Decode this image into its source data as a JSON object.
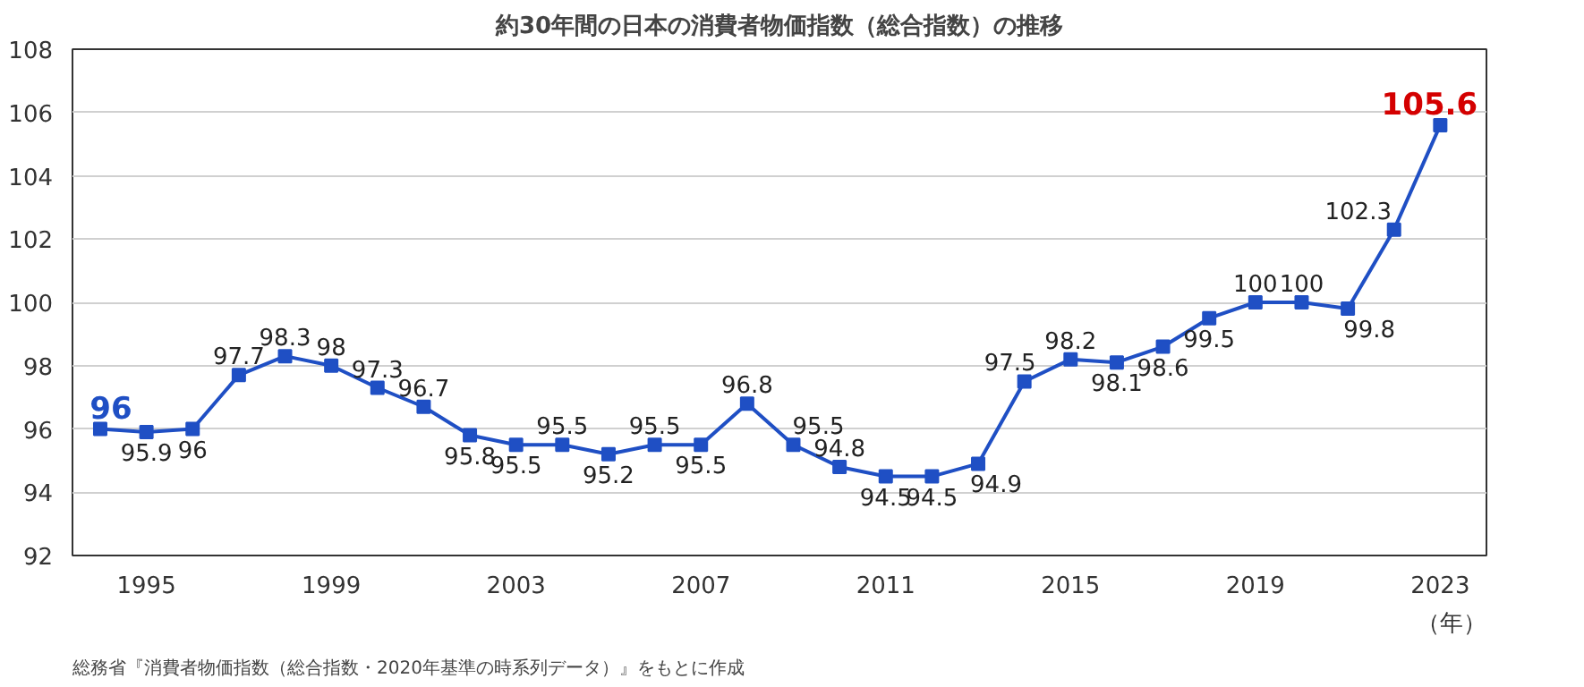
{
  "chart_data": {
    "type": "line",
    "title": "約30年間の日本の消費者物価指数（総合指数）の推移",
    "x": [
      1994,
      1995,
      1996,
      1997,
      1998,
      1999,
      2000,
      2001,
      2002,
      2003,
      2004,
      2005,
      2006,
      2007,
      2008,
      2009,
      2010,
      2011,
      2012,
      2013,
      2014,
      2015,
      2016,
      2017,
      2018,
      2019,
      2020,
      2021,
      2022,
      2023
    ],
    "series": [
      {
        "color": "#1f4fc4",
        "values": [
          96,
          95.9,
          96,
          97.7,
          98.3,
          98,
          97.3,
          96.7,
          95.8,
          95.5,
          95.5,
          95.2,
          95.5,
          95.5,
          96.8,
          95.5,
          94.8,
          94.5,
          94.5,
          94.9,
          97.5,
          98.2,
          98.1,
          98.6,
          99.5,
          100,
          100,
          99.8,
          102.3,
          105.6
        ]
      }
    ],
    "xlabel": "（年）",
    "xlim": [
      1993.4,
      2024
    ],
    "xticks": [
      1995,
      1999,
      2003,
      2007,
      2011,
      2015,
      2019,
      2023
    ],
    "ylim": [
      92,
      108
    ],
    "yticks": [
      92,
      94,
      96,
      98,
      100,
      102,
      104,
      106,
      108
    ],
    "grid": "y",
    "marker": "square",
    "line_style": "solid",
    "data_labels": true,
    "annotations": [
      "総務省『消費者物価指数（総合指数・2020年基準の時系列データ）』をもとに作成"
    ]
  }
}
